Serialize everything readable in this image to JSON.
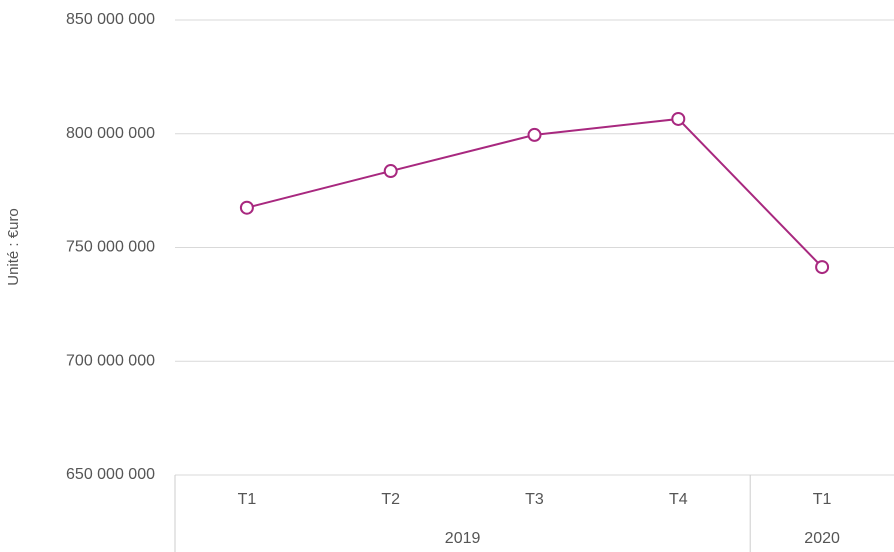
{
  "chart_data": {
    "type": "line",
    "y_label": "Unité : €uro",
    "groups": [
      {
        "name": "2019",
        "categories": [
          "T1",
          "T2",
          "T3",
          "T4"
        ]
      },
      {
        "name": "2020",
        "categories": [
          "T1"
        ]
      }
    ],
    "series": [
      {
        "color": "#a8287f",
        "values": [
          767500000,
          783600000,
          799500000,
          806500000,
          741400000
        ]
      }
    ],
    "ylim": [
      650000000,
      850000000
    ],
    "yticks": [
      {
        "value": 650000000,
        "label": "650 000 000"
      },
      {
        "value": 700000000,
        "label": "700 000 000"
      },
      {
        "value": 750000000,
        "label": "750 000 000"
      },
      {
        "value": 800000000,
        "label": "800 000 000"
      },
      {
        "value": 850000000,
        "label": "850 000 000"
      }
    ],
    "grid": true
  }
}
